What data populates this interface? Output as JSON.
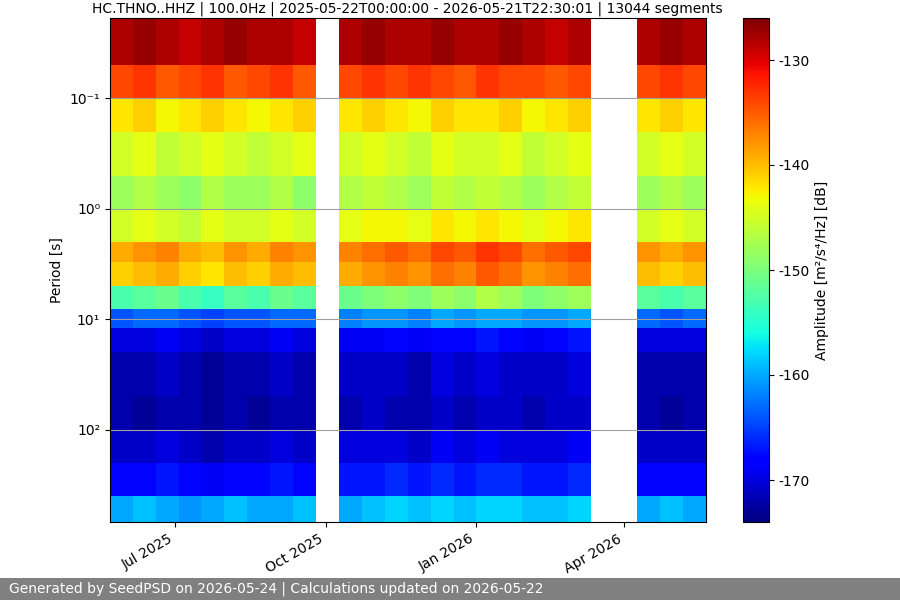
{
  "chart_data": {
    "type": "heatmap",
    "title": "HC.THNO..HHZ | 100.0Hz | 2025-05-22T00:00:00 - 2026-05-21T22:30:01 | 13044 segments",
    "ylabel": "Period [s]",
    "footer": "Generated by SeedPSD on 2026-05-24 | Calculations updated on 2026-05-22",
    "log": "y",
    "grid": true,
    "x": [
      "2025-05-22",
      "2025-06-05",
      "2025-06-19",
      "2025-07-03",
      "2025-07-17",
      "2025-07-31",
      "2025-08-14",
      "2025-08-28",
      "2025-09-11",
      "2025-09-25",
      "2025-10-09",
      "2025-10-23",
      "2025-11-06",
      "2025-11-20",
      "2025-12-04",
      "2025-12-18",
      "2026-01-01",
      "2026-01-15",
      "2026-01-29",
      "2026-02-12",
      "2026-02-26",
      "2026-03-12",
      "2026-03-26",
      "2026-04-09",
      "2026-04-23",
      "2026-05-07",
      "2026-05-21"
    ],
    "periods": [
      0.0187,
      0.05,
      0.1,
      0.2,
      0.5,
      1,
      2,
      3,
      5,
      8,
      12,
      20,
      50,
      100,
      200,
      400,
      686
    ],
    "cells": [
      [
        -128,
        -127,
        -128,
        -129,
        -128,
        -127,
        -128,
        -128,
        -129,
        null,
        -128,
        -127,
        -128,
        -128,
        -127,
        -128,
        -128,
        -127,
        -128,
        -129,
        -128,
        null,
        null,
        -128,
        -127,
        -128
      ],
      [
        -134,
        -133,
        -135,
        -134,
        -133,
        -135,
        -134,
        -133,
        -135,
        null,
        -134,
        -133,
        -134,
        -133,
        -134,
        -135,
        -133,
        -134,
        -134,
        -135,
        -134,
        null,
        null,
        -134,
        -133,
        -134
      ],
      [
        -142,
        -141,
        -143,
        -142,
        -141,
        -142,
        -143,
        -142,
        -141,
        null,
        -142,
        -141,
        -142,
        -143,
        -141,
        -142,
        -142,
        -141,
        -143,
        -142,
        -141,
        null,
        null,
        -142,
        -141,
        -142
      ],
      [
        -145,
        -144,
        -146,
        -145,
        -144,
        -145,
        -146,
        -145,
        -144,
        null,
        -145,
        -144,
        -145,
        -146,
        -144,
        -145,
        -145,
        -144,
        -146,
        -145,
        -144,
        null,
        null,
        -145,
        -144,
        -145
      ],
      [
        -148,
        -147,
        -148,
        -149,
        -147,
        -148,
        -148,
        -147,
        -149,
        null,
        -147,
        -146,
        -147,
        -148,
        -146,
        -147,
        -146,
        -147,
        -148,
        -147,
        -146,
        null,
        null,
        -148,
        -147,
        -148
      ],
      [
        -145,
        -144,
        -145,
        -146,
        -144,
        -145,
        -145,
        -144,
        -145,
        null,
        -144,
        -143,
        -143,
        -144,
        -142,
        -143,
        -142,
        -143,
        -144,
        -143,
        -142,
        null,
        null,
        -145,
        -144,
        -145
      ],
      [
        -139,
        -138,
        -137,
        -139,
        -140,
        -138,
        -139,
        -137,
        -138,
        null,
        -137,
        -136,
        -135,
        -136,
        -134,
        -135,
        -133,
        -134,
        -136,
        -135,
        -134,
        null,
        null,
        -138,
        -139,
        -138
      ],
      [
        -141,
        -140,
        -139,
        -141,
        -142,
        -140,
        -141,
        -139,
        -140,
        null,
        -139,
        -138,
        -137,
        -138,
        -136,
        -137,
        -135,
        -136,
        -138,
        -137,
        -136,
        null,
        null,
        -140,
        -141,
        -140
      ],
      [
        -153,
        -152,
        -151,
        -153,
        -154,
        -152,
        -153,
        -151,
        -152,
        null,
        -151,
        -150,
        -149,
        -150,
        -148,
        -149,
        -147,
        -148,
        -150,
        -149,
        -148,
        null,
        null,
        -152,
        -153,
        -152
      ],
      [
        -164,
        -163,
        -163,
        -164,
        -165,
        -164,
        -164,
        -163,
        -163,
        null,
        -162,
        -161,
        -161,
        -162,
        -160,
        -161,
        -160,
        -160,
        -161,
        -161,
        -160,
        null,
        null,
        -163,
        -164,
        -163
      ],
      [
        -170,
        -170,
        -169,
        -170,
        -171,
        -170,
        -170,
        -169,
        -170,
        null,
        -169,
        -169,
        -168,
        -169,
        -168,
        -168,
        -167,
        -168,
        -169,
        -168,
        -167,
        null,
        null,
        -170,
        -170,
        -170
      ],
      [
        -172,
        -172,
        -171,
        -172,
        -173,
        -172,
        -172,
        -171,
        -172,
        null,
        -171,
        -171,
        -171,
        -172,
        -170,
        -171,
        -170,
        -171,
        -171,
        -171,
        -170,
        null,
        null,
        -172,
        -172,
        -172
      ],
      [
        -172,
        -173,
        -172,
        -172,
        -173,
        -172,
        -173,
        -172,
        -172,
        null,
        -172,
        -171,
        -172,
        -172,
        -171,
        -172,
        -171,
        -171,
        -172,
        -171,
        -171,
        null,
        null,
        -172,
        -173,
        -172
      ],
      [
        -171,
        -171,
        -170,
        -171,
        -172,
        -171,
        -171,
        -170,
        -171,
        null,
        -170,
        -170,
        -170,
        -171,
        -169,
        -170,
        -169,
        -170,
        -170,
        -170,
        -169,
        null,
        null,
        -171,
        -171,
        -171
      ],
      [
        -168,
        -168,
        -167,
        -168,
        -169,
        -168,
        -168,
        -167,
        -168,
        null,
        -167,
        -167,
        -166,
        -167,
        -166,
        -167,
        -166,
        -166,
        -167,
        -167,
        -166,
        null,
        null,
        -168,
        -168,
        -168
      ],
      [
        -160,
        -159,
        -160,
        -161,
        -160,
        -159,
        -160,
        -160,
        -159,
        null,
        -160,
        -159,
        -158,
        -159,
        -158,
        -159,
        -158,
        -158,
        -159,
        -159,
        -158,
        null,
        null,
        -160,
        -159,
        -160
      ]
    ],
    "xlim": [
      "2025-05-22",
      "2026-05-21"
    ],
    "xticks": [
      {
        "value": "2025-07-01",
        "label": "Jul 2025"
      },
      {
        "value": "2025-10-01",
        "label": "Oct 2025"
      },
      {
        "value": "2026-01-01",
        "label": "Jan 2026"
      },
      {
        "value": "2026-04-01",
        "label": "Apr 2026"
      }
    ],
    "ylim": [
      686,
      0.0187
    ],
    "yticks": [
      {
        "value": 0.1,
        "label": "10⁻¹"
      },
      {
        "value": 1,
        "label": "10⁰"
      },
      {
        "value": 10,
        "label": "10¹"
      },
      {
        "value": 100,
        "label": "10²"
      }
    ],
    "colorbar_label": "Amplitude [m²/s⁴/Hz] [dB]",
    "colorbar_range": [
      -174,
      -126
    ],
    "colorbar_ticks": [
      -170,
      -160,
      -150,
      -140,
      -130
    ]
  }
}
